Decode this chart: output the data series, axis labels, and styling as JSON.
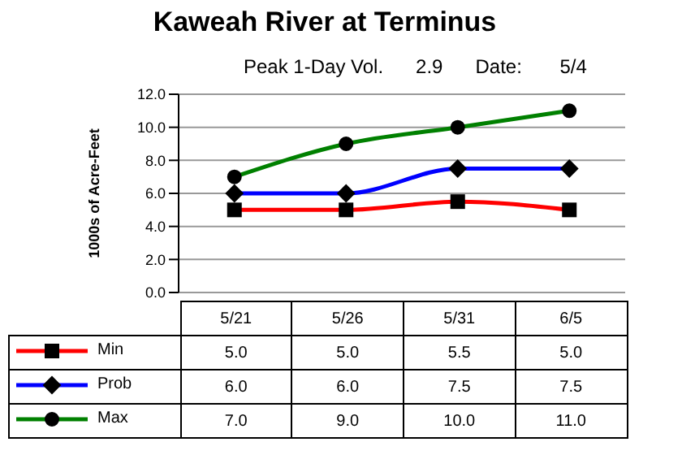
{
  "chart_data": {
    "type": "line",
    "title": "Kaweah River at Terminus",
    "subtitle": "Peak 1-Day Vol.      2.9      Date:       5/4",
    "ylabel": "1000s of Acre-Feet",
    "categories": [
      "5/21",
      "5/26",
      "5/31",
      "6/5"
    ],
    "series": [
      {
        "name": "Min",
        "color": "#ff0000",
        "marker": "square",
        "values": [
          5.0,
          5.0,
          5.5,
          5.0
        ],
        "value_labels": [
          "5.0",
          "5.0",
          "5.5",
          "5.0"
        ]
      },
      {
        "name": "Prob",
        "color": "#0000ff",
        "marker": "diamond",
        "values": [
          6.0,
          6.0,
          7.5,
          7.5
        ],
        "value_labels": [
          "6.0",
          "6.0",
          "7.5",
          "7.5"
        ]
      },
      {
        "name": "Max",
        "color": "#008000",
        "marker": "circle",
        "values": [
          7.0,
          9.0,
          10.0,
          11.0
        ],
        "value_labels": [
          "7.0",
          "9.0",
          "10.0",
          "11.0"
        ]
      }
    ],
    "ylim": [
      0,
      12
    ],
    "yticks": [
      {
        "value": 0,
        "label": "0.0"
      },
      {
        "value": 2,
        "label": "2.0"
      },
      {
        "value": 4,
        "label": "4.0"
      },
      {
        "value": 6,
        "label": "6.0"
      },
      {
        "value": 8,
        "label": "8.0"
      },
      {
        "value": 10,
        "label": "10.0"
      },
      {
        "value": 12,
        "label": "12.0"
      }
    ],
    "grid": "y",
    "legend": "bottom",
    "line_style": "solid"
  }
}
